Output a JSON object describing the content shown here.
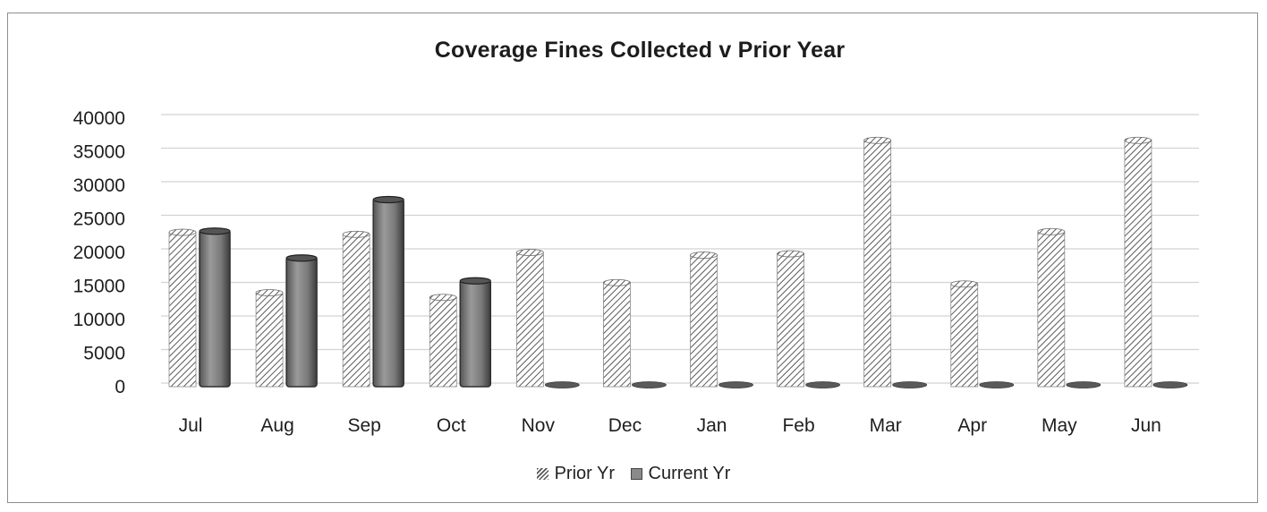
{
  "chart_data": {
    "type": "bar",
    "title": "Coverage Fines Collected v Prior Year",
    "categories": [
      "Jul",
      "Aug",
      "Sep",
      "Oct",
      "Nov",
      "Dec",
      "Jan",
      "Feb",
      "Mar",
      "Apr",
      "May",
      "Jun"
    ],
    "series": [
      {
        "name": "Prior Yr",
        "values": [
          23000,
          14000,
          22700,
          13300,
          20000,
          15500,
          19600,
          19800,
          36700,
          15300,
          23100,
          36700
        ]
      },
      {
        "name": "Current Yr",
        "values": [
          23300,
          19300,
          28000,
          15900,
          0,
          0,
          0,
          0,
          0,
          0,
          0,
          0
        ]
      }
    ],
    "yticks": [
      "40000",
      "35000",
      "30000",
      "25000",
      "20000",
      "15000",
      "10000",
      "5000",
      "0"
    ],
    "ylim": [
      0,
      40000
    ],
    "grid": true,
    "legend_position": "bottom",
    "colors": {
      "prior": "#5a5a5a",
      "current": "#7d7d7d"
    }
  }
}
